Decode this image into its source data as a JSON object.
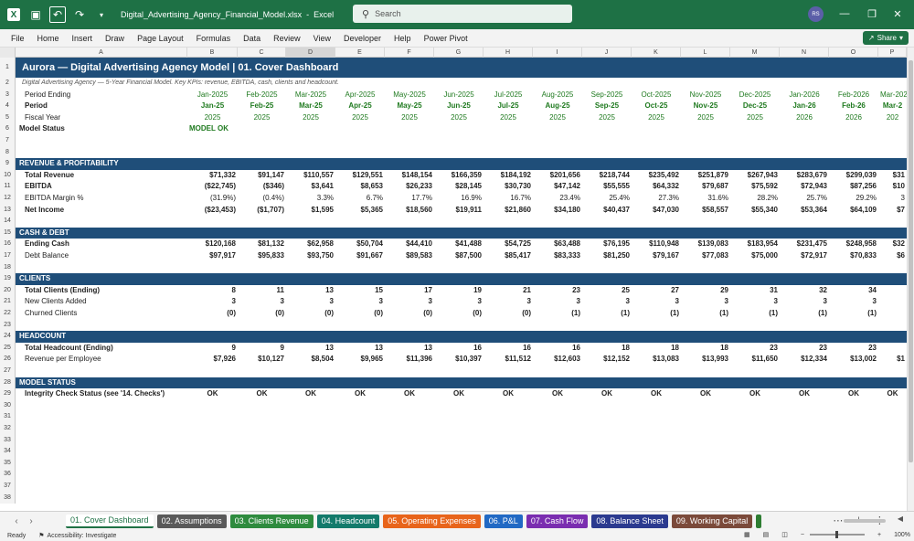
{
  "titlebar": {
    "filename": "Digital_Advertising_Agency_Financial_Model.xlsx",
    "app": "Excel",
    "search_placeholder": "Search",
    "user_initials": "RS"
  },
  "ribbon": {
    "tabs": [
      "File",
      "Home",
      "Insert",
      "Draw",
      "Page Layout",
      "Formulas",
      "Data",
      "Review",
      "View",
      "Developer",
      "Help",
      "Power Pivot"
    ],
    "share_label": "Share"
  },
  "columns": [
    "A",
    "B",
    "C",
    "D",
    "E",
    "F",
    "G",
    "H",
    "I",
    "J",
    "K",
    "L",
    "M",
    "N",
    "O",
    "P"
  ],
  "selected_column": "D",
  "row_numbers": [
    "1",
    "2",
    "3",
    "4",
    "5",
    "6",
    "7",
    "8",
    "9",
    "10",
    "11",
    "12",
    "13",
    "14",
    "15",
    "16",
    "17",
    "18",
    "19",
    "20",
    "21",
    "22",
    "23",
    "24",
    "25",
    "26",
    "27",
    "28",
    "29",
    "30",
    "31",
    "32",
    "33",
    "34",
    "35",
    "36",
    "37",
    "38"
  ],
  "sheet": {
    "title": "Aurora — Digital Advertising Agency Model  |  01. Cover Dashboard",
    "subtitle": "Digital Advertising Agency — 5-Year Financial Model. Key KPIs: revenue, EBITDA, cash, clients and headcount.",
    "period_ending_label": "Period Ending",
    "period_label": "Period",
    "fiscal_year_label": "Fiscal Year",
    "model_status_label": "Model Status",
    "model_status_value": "MODEL OK",
    "period_ending": [
      "Jan-2025",
      "Feb-2025",
      "Mar-2025",
      "Apr-2025",
      "May-2025",
      "Jun-2025",
      "Jul-2025",
      "Aug-2025",
      "Sep-2025",
      "Oct-2025",
      "Nov-2025",
      "Dec-2025",
      "Jan-2026",
      "Feb-2026",
      "Mar-2026"
    ],
    "period": [
      "Jan-25",
      "Feb-25",
      "Mar-25",
      "Apr-25",
      "May-25",
      "Jun-25",
      "Jul-25",
      "Aug-25",
      "Sep-25",
      "Oct-25",
      "Nov-25",
      "Dec-25",
      "Jan-26",
      "Feb-26",
      "Mar-2"
    ],
    "fiscal_year": [
      "2025",
      "2025",
      "2025",
      "2025",
      "2025",
      "2025",
      "2025",
      "2025",
      "2025",
      "2025",
      "2025",
      "2025",
      "2026",
      "2026",
      "202"
    ],
    "sections": {
      "rev": "REVENUE & PROFITABILITY",
      "cash": "CASH & DEBT",
      "clients": "CLIENTS",
      "headcount": "HEADCOUNT",
      "status": "MODEL STATUS"
    },
    "rows": {
      "total_revenue": {
        "label": "Total Revenue",
        "values": [
          "$71,332",
          "$91,147",
          "$110,557",
          "$129,551",
          "$148,154",
          "$166,359",
          "$184,192",
          "$201,656",
          "$218,744",
          "$235,492",
          "$251,879",
          "$267,943",
          "$283,679",
          "$299,039",
          "$31"
        ]
      },
      "ebitda": {
        "label": "EBITDA",
        "values": [
          "($22,745)",
          "($346)",
          "$3,641",
          "$8,653",
          "$26,233",
          "$28,145",
          "$30,730",
          "$47,142",
          "$55,555",
          "$64,332",
          "$79,687",
          "$75,592",
          "$72,943",
          "$87,256",
          "$10"
        ]
      },
      "ebitda_margin": {
        "label": "EBITDA Margin %",
        "values": [
          "(31.9%)",
          "(0.4%)",
          "3.3%",
          "6.7%",
          "17.7%",
          "16.9%",
          "16.7%",
          "23.4%",
          "25.4%",
          "27.3%",
          "31.6%",
          "28.2%",
          "25.7%",
          "29.2%",
          "3"
        ]
      },
      "net_income": {
        "label": "Net Income",
        "values": [
          "($23,453)",
          "($1,707)",
          "$1,595",
          "$5,365",
          "$18,560",
          "$19,911",
          "$21,860",
          "$34,180",
          "$40,437",
          "$47,030",
          "$58,557",
          "$55,340",
          "$53,364",
          "$64,109",
          "$7"
        ]
      },
      "ending_cash": {
        "label": "Ending Cash",
        "values": [
          "$120,168",
          "$81,132",
          "$62,958",
          "$50,704",
          "$44,410",
          "$41,488",
          "$54,725",
          "$63,488",
          "$76,195",
          "$110,948",
          "$139,083",
          "$183,954",
          "$231,475",
          "$248,958",
          "$32"
        ]
      },
      "debt_balance": {
        "label": "Debt Balance",
        "values": [
          "$97,917",
          "$95,833",
          "$93,750",
          "$91,667",
          "$89,583",
          "$87,500",
          "$85,417",
          "$83,333",
          "$81,250",
          "$79,167",
          "$77,083",
          "$75,000",
          "$72,917",
          "$70,833",
          "$6"
        ]
      },
      "total_clients": {
        "label": "Total Clients (Ending)",
        "values": [
          "8",
          "11",
          "13",
          "15",
          "17",
          "19",
          "21",
          "23",
          "25",
          "27",
          "29",
          "31",
          "32",
          "34",
          ""
        ]
      },
      "new_clients": {
        "label": "New Clients Added",
        "values": [
          "3",
          "3",
          "3",
          "3",
          "3",
          "3",
          "3",
          "3",
          "3",
          "3",
          "3",
          "3",
          "3",
          "3",
          ""
        ]
      },
      "churned_clients": {
        "label": "Churned Clients",
        "values": [
          "(0)",
          "(0)",
          "(0)",
          "(0)",
          "(0)",
          "(0)",
          "(0)",
          "(1)",
          "(1)",
          "(1)",
          "(1)",
          "(1)",
          "(1)",
          "(1)",
          ""
        ]
      },
      "total_headcount": {
        "label": "Total Headcount (Ending)",
        "values": [
          "9",
          "9",
          "13",
          "13",
          "13",
          "16",
          "16",
          "16",
          "18",
          "18",
          "18",
          "23",
          "23",
          "23",
          ""
        ]
      },
      "rev_per_emp": {
        "label": "Revenue per Employee",
        "values": [
          "$7,926",
          "$10,127",
          "$8,504",
          "$9,965",
          "$11,396",
          "$10,397",
          "$11,512",
          "$12,603",
          "$12,152",
          "$13,083",
          "$13,993",
          "$11,650",
          "$12,334",
          "$13,002",
          "$1"
        ]
      },
      "integrity": {
        "label": "Integrity Check Status (see '14. Checks')",
        "values": [
          "OK",
          "OK",
          "OK",
          "OK",
          "OK",
          "OK",
          "OK",
          "OK",
          "OK",
          "OK",
          "OK",
          "OK",
          "OK",
          "OK",
          "OK"
        ]
      }
    }
  },
  "sheet_tabs": [
    {
      "label": "01. Cover Dashboard",
      "color": "#ffffff",
      "active": true
    },
    {
      "label": "02. Assumptions",
      "color": "#595959"
    },
    {
      "label": "03. Clients Revenue",
      "color": "#2e8b3e"
    },
    {
      "label": "04. Headcount",
      "color": "#137a6b"
    },
    {
      "label": "05. Operating Expenses",
      "color": "#e8641b"
    },
    {
      "label": "06. P&L",
      "color": "#2169c4"
    },
    {
      "label": "07. Cash Flow",
      "color": "#7a2db0"
    },
    {
      "label": "08. Balance Sheet",
      "color": "#2b3a8f"
    },
    {
      "label": "09. Working Capital",
      "color": "#7b4a3a"
    }
  ],
  "statusbar": {
    "ready": "Ready",
    "accessibility": "Accessibility: Investigate",
    "zoom": "100%"
  }
}
